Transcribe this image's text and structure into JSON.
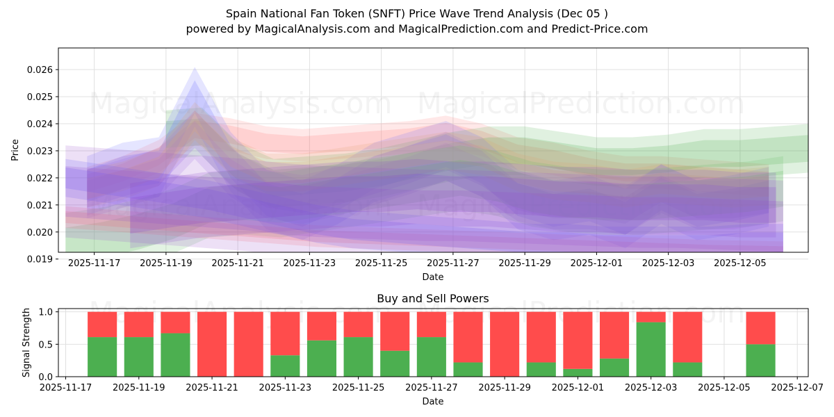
{
  "title": "Spain National Fan Token (SNFT) Price Wave Trend Analysis (Dec 05 )",
  "subtitle": "powered by MagicalAnalysis.com and MagicalPrediction.com and Predict-Price.com",
  "watermarks": [
    "MagicalAnalysis.com",
    "MagicalPrediction.com"
  ],
  "colors": {
    "buy": "#4caf50",
    "sell": "#ff4c4c",
    "grid": "#e0e0e0",
    "axis": "#000000"
  },
  "chart_data": [
    {
      "type": "area",
      "title": "",
      "xlabel": "Date",
      "ylabel": "Price",
      "x_dates": [
        "2025-11-17",
        "2025-11-18",
        "2025-11-19",
        "2025-11-20",
        "2025-11-21",
        "2025-11-22",
        "2025-11-23",
        "2025-11-24",
        "2025-11-25",
        "2025-11-26",
        "2025-11-27",
        "2025-11-28",
        "2025-11-29",
        "2025-11-30",
        "2025-12-01",
        "2025-12-02",
        "2025-12-03",
        "2025-12-04",
        "2025-12-05",
        "2025-12-06"
      ],
      "xlim": [
        "2025-11-16.0",
        "2025-12-06.9"
      ],
      "ylim": [
        0.01925,
        0.0268
      ],
      "x_ticks": [
        "2025-11-17",
        "2025-11-19",
        "2025-11-21",
        "2025-11-23",
        "2025-11-25",
        "2025-11-27",
        "2025-11-29",
        "2025-12-01",
        "2025-12-03",
        "2025-12-05"
      ],
      "y_ticks": [
        "0.019",
        "0.020",
        "0.021",
        "0.022",
        "0.023",
        "0.024",
        "0.025",
        "0.026"
      ],
      "grid": true,
      "series": [
        {
          "name": "red upper band",
          "color": "#ff8080",
          "x_start": "2025-11-16.8",
          "x_step_days": 1,
          "values": [
            0.0218,
            0.0222,
            0.0228,
            0.0238,
            0.0236,
            0.0233,
            0.0232,
            0.0233,
            0.0234,
            0.0235,
            0.0237,
            0.0234,
            0.0229,
            0.0227,
            0.0224,
            0.0222,
            0.0222,
            0.0221,
            0.022,
            0.0219
          ],
          "width": 0.0006
        },
        {
          "name": "green upper band",
          "color": "#55b055",
          "x_start": "2025-11-19.0",
          "x_step_days": 1,
          "values": [
            0.0236,
            0.0237,
            0.0224,
            0.0218,
            0.0219,
            0.022,
            0.0222,
            0.0225,
            0.0228,
            0.023,
            0.023,
            0.0228,
            0.0226,
            0.0226,
            0.0227,
            0.0229,
            0.0229,
            0.023,
            0.0231
          ],
          "width": 0.0009
        },
        {
          "name": "blue wave",
          "color": "#6f6fff",
          "x_start": "2025-11-16.8",
          "x_step_days": 1,
          "values": [
            0.0217,
            0.0222,
            0.0224,
            0.025,
            0.0226,
            0.0212,
            0.0208,
            0.0214,
            0.0222,
            0.0226,
            0.023,
            0.0224,
            0.0212,
            0.0208,
            0.021,
            0.0205,
            0.0214,
            0.0208,
            0.021,
            0.0213
          ],
          "width": 0.0011
        },
        {
          "name": "violet wave",
          "color": "#9b6ae6",
          "x_start": "2025-11-16.8",
          "x_step_days": 1,
          "values": [
            0.0214,
            0.0218,
            0.0222,
            0.0236,
            0.0222,
            0.0214,
            0.0212,
            0.0215,
            0.0219,
            0.0223,
            0.0228,
            0.0222,
            0.0213,
            0.021,
            0.021,
            0.0208,
            0.0216,
            0.021,
            0.021,
            0.0212
          ],
          "width": 0.0009
        },
        {
          "name": "orange wave",
          "color": "#e0a070",
          "x_start": "2025-11-16.8",
          "x_step_days": 1,
          "values": [
            0.0216,
            0.0219,
            0.0224,
            0.0241,
            0.0228,
            0.0222,
            0.0222,
            0.0224,
            0.0226,
            0.0228,
            0.023,
            0.0228,
            0.0222,
            0.0219,
            0.0218,
            0.0216,
            0.0218,
            0.0217,
            0.0216,
            0.0217
          ],
          "width": 0.0007
        },
        {
          "name": "green rising band",
          "color": "#66bb66",
          "x_start": "2025-11-16.2",
          "x_step_days": 1,
          "values": [
            0.0195,
            0.0197,
            0.02,
            0.0204,
            0.021,
            0.0211,
            0.021,
            0.0212,
            0.0214,
            0.0216,
            0.0218,
            0.022,
            0.0218,
            0.0214,
            0.0212,
            0.0211,
            0.0211,
            0.0212,
            0.0213,
            0.0214,
            0.0216
          ],
          "width": 0.0012
        },
        {
          "name": "red lower band",
          "color": "#ff7070",
          "x_start": "2025-11-16.2",
          "x_step_days": 1,
          "values": [
            0.02055,
            0.02045,
            0.02035,
            0.02025,
            0.02015,
            0.02005,
            0.01995,
            0.01985,
            0.0198,
            0.01975,
            0.0197,
            0.01965,
            0.0196,
            0.01955,
            0.0195,
            0.01945,
            0.0194,
            0.01935,
            0.0193,
            0.01928,
            0.01925
          ],
          "width": 0.0004
        },
        {
          "name": "blue lower band",
          "color": "#5a5aff",
          "x_start": "2025-11-16.2",
          "x_step_days": 1,
          "values": [
            0.022,
            0.0218,
            0.0216,
            0.0214,
            0.0212,
            0.0209,
            0.0206,
            0.0203,
            0.0201,
            0.02,
            0.0199,
            0.0198,
            0.0197,
            0.0196,
            0.0196,
            0.0195,
            0.0195,
            0.0195,
            0.0195,
            0.0196,
            0.0196
          ],
          "width": 0.0007
        },
        {
          "name": "purple main band",
          "color": "#9955cc",
          "x_start": "2025-11-16.2",
          "x_step_days": 1,
          "values": [
            0.0215,
            0.0214,
            0.0213,
            0.0212,
            0.0211,
            0.021,
            0.02085,
            0.02075,
            0.0207,
            0.02065,
            0.0206,
            0.0206,
            0.02055,
            0.0205,
            0.02045,
            0.0204,
            0.02035,
            0.02035,
            0.0203,
            0.02025,
            0.0202
          ],
          "width": 0.0017
        },
        {
          "name": "purple rising band",
          "color": "#8844cc",
          "x_start": "2025-11-18.0",
          "x_step_days": 1,
          "values": [
            0.0206,
            0.0208,
            0.021,
            0.0211,
            0.0212,
            0.0213,
            0.0214,
            0.0214,
            0.0215,
            0.0214,
            0.0214,
            0.0213,
            0.0212,
            0.0212,
            0.0211,
            0.0211,
            0.0211,
            0.021,
            0.021
          ],
          "width": 0.0012
        }
      ]
    },
    {
      "type": "bar",
      "title": "Buy and Sell Powers",
      "xlabel": "Date",
      "ylabel": "Signal Strength",
      "ylim": [
        0,
        1.05
      ],
      "xlim": [
        "2025-11-16.8",
        "2025-12-07.3"
      ],
      "y_ticks": [
        "0.0",
        "0.5",
        "1.0"
      ],
      "x_ticks": [
        "2025-11-17",
        "2025-11-19",
        "2025-11-21",
        "2025-11-23",
        "2025-11-25",
        "2025-11-27",
        "2025-11-29",
        "2025-12-01",
        "2025-12-03",
        "2025-12-05",
        "2025-12-07"
      ],
      "categories": [
        "2025-11-18",
        "2025-11-19",
        "2025-11-20",
        "2025-11-21",
        "2025-11-22",
        "2025-11-23",
        "2025-11-24",
        "2025-11-25",
        "2025-11-26",
        "2025-11-27",
        "2025-11-28",
        "2025-11-29",
        "2025-11-30",
        "2025-12-01",
        "2025-12-02",
        "2025-12-03",
        "2025-12-04",
        "2025-12-06"
      ],
      "series": [
        {
          "name": "Buy",
          "color": "#4caf50",
          "values": [
            0.61,
            0.61,
            0.67,
            0.0,
            0.0,
            0.33,
            0.56,
            0.61,
            0.4,
            0.61,
            0.22,
            0.0,
            0.22,
            0.12,
            0.28,
            0.84,
            0.22,
            0.5
          ]
        },
        {
          "name": "Sell",
          "color": "#ff4c4c",
          "values": [
            0.39,
            0.39,
            0.33,
            1.0,
            1.0,
            0.67,
            0.44,
            0.39,
            0.6,
            0.39,
            0.78,
            1.0,
            0.78,
            0.88,
            0.72,
            0.16,
            0.78,
            0.5
          ]
        }
      ]
    }
  ]
}
